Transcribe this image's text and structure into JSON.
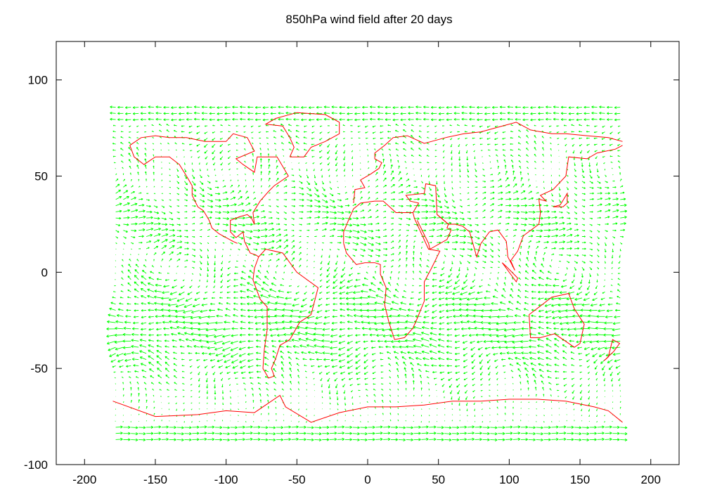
{
  "chart_data": {
    "type": "vector-field",
    "title": "850hPa wind field after 20 days",
    "xlim": [
      -220,
      220
    ],
    "ylim": [
      -100,
      120
    ],
    "xticks": [
      -200,
      -150,
      -100,
      -50,
      0,
      50,
      100,
      150,
      200
    ],
    "yticks": [
      100,
      50,
      0,
      -50,
      -100
    ],
    "grid": false,
    "series": [
      {
        "role": "wind-vectors",
        "color": "#00ff00"
      },
      {
        "role": "coastlines",
        "color": "#ff0000"
      }
    ],
    "coastlines": [
      [
        [
          -168,
          66
        ],
        [
          -160,
          70
        ],
        [
          -150,
          71
        ],
        [
          -140,
          70
        ],
        [
          -128,
          70
        ],
        [
          -115,
          68
        ],
        [
          -100,
          68
        ],
        [
          -95,
          72
        ],
        [
          -85,
          70
        ],
        [
          -80,
          63
        ],
        [
          -93,
          59
        ],
        [
          -88,
          56
        ],
        [
          -80,
          52
        ],
        [
          -78,
          60
        ],
        [
          -70,
          60
        ],
        [
          -64,
          60
        ],
        [
          -60,
          55
        ],
        [
          -56,
          50
        ],
        [
          -66,
          45
        ],
        [
          -70,
          42
        ],
        [
          -76,
          37
        ],
        [
          -81,
          31
        ],
        [
          -80,
          25
        ],
        [
          -82,
          28
        ],
        [
          -85,
          30
        ],
        [
          -90,
          29
        ],
        [
          -97,
          27
        ],
        [
          -97,
          21
        ],
        [
          -93,
          18
        ],
        [
          -88,
          21
        ],
        [
          -87,
          16
        ],
        [
          -83,
          10
        ],
        [
          -79,
          9
        ],
        [
          -77,
          8
        ],
        [
          -80,
          2
        ],
        [
          -81,
          -4
        ],
        [
          -76,
          -14
        ],
        [
          -71,
          -18
        ],
        [
          -71,
          -30
        ],
        [
          -73,
          -40
        ],
        [
          -74,
          -50
        ],
        [
          -70,
          -55
        ],
        [
          -66,
          -54
        ],
        [
          -68,
          -50
        ],
        [
          -65,
          -45
        ],
        [
          -62,
          -38
        ],
        [
          -55,
          -35
        ],
        [
          -48,
          -26
        ],
        [
          -40,
          -22
        ],
        [
          -35,
          -8
        ],
        [
          -50,
          0
        ],
        [
          -60,
          10
        ],
        [
          -72,
          12
        ],
        [
          -77,
          8
        ]
      ],
      [
        [
          -168,
          66
        ],
        [
          -165,
          60
        ],
        [
          -158,
          56
        ],
        [
          -150,
          60
        ],
        [
          -140,
          60
        ],
        [
          -133,
          56
        ],
        [
          -128,
          50
        ],
        [
          -124,
          45
        ],
        [
          -124,
          40
        ],
        [
          -120,
          34
        ],
        [
          -116,
          32
        ],
        [
          -112,
          27
        ],
        [
          -110,
          23
        ],
        [
          -105,
          20
        ],
        [
          -95,
          16
        ],
        [
          -92,
          15
        ]
      ],
      [
        [
          -55,
          60
        ],
        [
          -45,
          60
        ],
        [
          -40,
          65
        ],
        [
          -30,
          68
        ],
        [
          -20,
          72
        ],
        [
          -20,
          78
        ],
        [
          -30,
          82
        ],
        [
          -50,
          83
        ],
        [
          -65,
          80
        ],
        [
          -72,
          77
        ],
        [
          -60,
          76
        ],
        [
          -55,
          70
        ],
        [
          -52,
          65
        ],
        [
          -55,
          60
        ]
      ],
      [
        [
          -10,
          36
        ],
        [
          -9,
          43
        ],
        [
          -2,
          44
        ],
        [
          -5,
          48
        ],
        [
          2,
          51
        ],
        [
          8,
          54
        ],
        [
          10,
          57
        ],
        [
          5,
          59
        ],
        [
          5,
          62
        ],
        [
          12,
          66
        ],
        [
          18,
          70
        ],
        [
          28,
          71
        ],
        [
          40,
          67
        ],
        [
          45,
          68
        ],
        [
          55,
          70
        ],
        [
          68,
          72
        ],
        [
          80,
          73
        ],
        [
          95,
          76
        ],
        [
          105,
          78
        ],
        [
          115,
          74
        ],
        [
          130,
          72
        ],
        [
          140,
          72
        ],
        [
          155,
          71
        ],
        [
          170,
          70
        ],
        [
          180,
          68
        ]
      ],
      [
        [
          -17,
          15
        ],
        [
          -17,
          21
        ],
        [
          -13,
          28
        ],
        [
          -10,
          33
        ],
        [
          -5,
          36
        ],
        [
          5,
          37
        ],
        [
          11,
          37
        ],
        [
          20,
          31
        ],
        [
          32,
          31
        ],
        [
          33,
          28
        ],
        [
          43,
          12
        ],
        [
          51,
          11
        ],
        [
          45,
          2
        ],
        [
          40,
          -5
        ],
        [
          40,
          -15
        ],
        [
          35,
          -24
        ],
        [
          32,
          -29
        ],
        [
          26,
          -34
        ],
        [
          19,
          -35
        ],
        [
          15,
          -26
        ],
        [
          12,
          -17
        ],
        [
          13,
          -8
        ],
        [
          9,
          -1
        ],
        [
          9,
          4
        ],
        [
          5,
          5
        ],
        [
          -2,
          5
        ],
        [
          -8,
          4
        ],
        [
          -15,
          10
        ],
        [
          -17,
          15
        ]
      ],
      [
        [
          32,
          31
        ],
        [
          36,
          36
        ],
        [
          30,
          37
        ],
        [
          27,
          40
        ],
        [
          40,
          41
        ],
        [
          41,
          46
        ],
        [
          48,
          45
        ],
        [
          49,
          30
        ],
        [
          57,
          25
        ],
        [
          56,
          23
        ],
        [
          59,
          22
        ],
        [
          56,
          17
        ],
        [
          44,
          12
        ],
        [
          43,
          15
        ],
        [
          39,
          21
        ],
        [
          35,
          27
        ]
      ],
      [
        [
          49,
          30
        ],
        [
          57,
          25
        ],
        [
          62,
          25
        ],
        [
          67,
          24
        ],
        [
          72,
          21
        ],
        [
          77,
          8
        ],
        [
          80,
          15
        ],
        [
          86,
          21
        ],
        [
          92,
          22
        ],
        [
          98,
          16
        ],
        [
          99,
          8
        ],
        [
          104,
          1
        ],
        [
          101,
          6
        ],
        [
          106,
          11
        ],
        [
          110,
          19
        ],
        [
          121,
          25
        ],
        [
          122,
          31
        ],
        [
          121,
          38
        ],
        [
          126,
          37
        ],
        [
          122,
          40
        ],
        [
          131,
          43
        ],
        [
          140,
          50
        ],
        [
          142,
          60
        ],
        [
          155,
          59
        ],
        [
          162,
          62
        ],
        [
          175,
          64
        ],
        [
          180,
          66
        ]
      ],
      [
        [
          -180,
          -67
        ],
        [
          -150,
          -75
        ],
        [
          -120,
          -74
        ],
        [
          -100,
          -72
        ],
        [
          -80,
          -73
        ],
        [
          -62,
          -64
        ],
        [
          -58,
          -70
        ],
        [
          -40,
          -78
        ],
        [
          -20,
          -73
        ],
        [
          0,
          -70
        ],
        [
          20,
          -70
        ],
        [
          40,
          -69
        ],
        [
          60,
          -67
        ],
        [
          80,
          -67
        ],
        [
          100,
          -66
        ],
        [
          120,
          -66
        ],
        [
          140,
          -67
        ],
        [
          160,
          -70
        ],
        [
          170,
          -72
        ],
        [
          180,
          -78
        ]
      ],
      [
        [
          114,
          -22
        ],
        [
          115,
          -34
        ],
        [
          122,
          -34
        ],
        [
          132,
          -32
        ],
        [
          138,
          -35
        ],
        [
          146,
          -39
        ],
        [
          150,
          -37
        ],
        [
          153,
          -27
        ],
        [
          146,
          -19
        ],
        [
          142,
          -11
        ],
        [
          136,
          -12
        ],
        [
          130,
          -13
        ],
        [
          123,
          -17
        ],
        [
          114,
          -22
        ]
      ],
      [
        [
          167,
          -46
        ],
        [
          174,
          -41
        ],
        [
          178,
          -37
        ],
        [
          173,
          -35
        ],
        [
          170,
          -44
        ],
        [
          167,
          -46
        ]
      ],
      [
        [
          95,
          5
        ],
        [
          105,
          -5
        ],
        [
          106,
          -3
        ],
        [
          98,
          3
        ],
        [
          95,
          5
        ]
      ],
      [
        [
          131,
          34
        ],
        [
          136,
          35
        ],
        [
          141,
          41
        ],
        [
          141,
          36
        ],
        [
          138,
          34
        ],
        [
          131,
          34
        ]
      ]
    ]
  }
}
